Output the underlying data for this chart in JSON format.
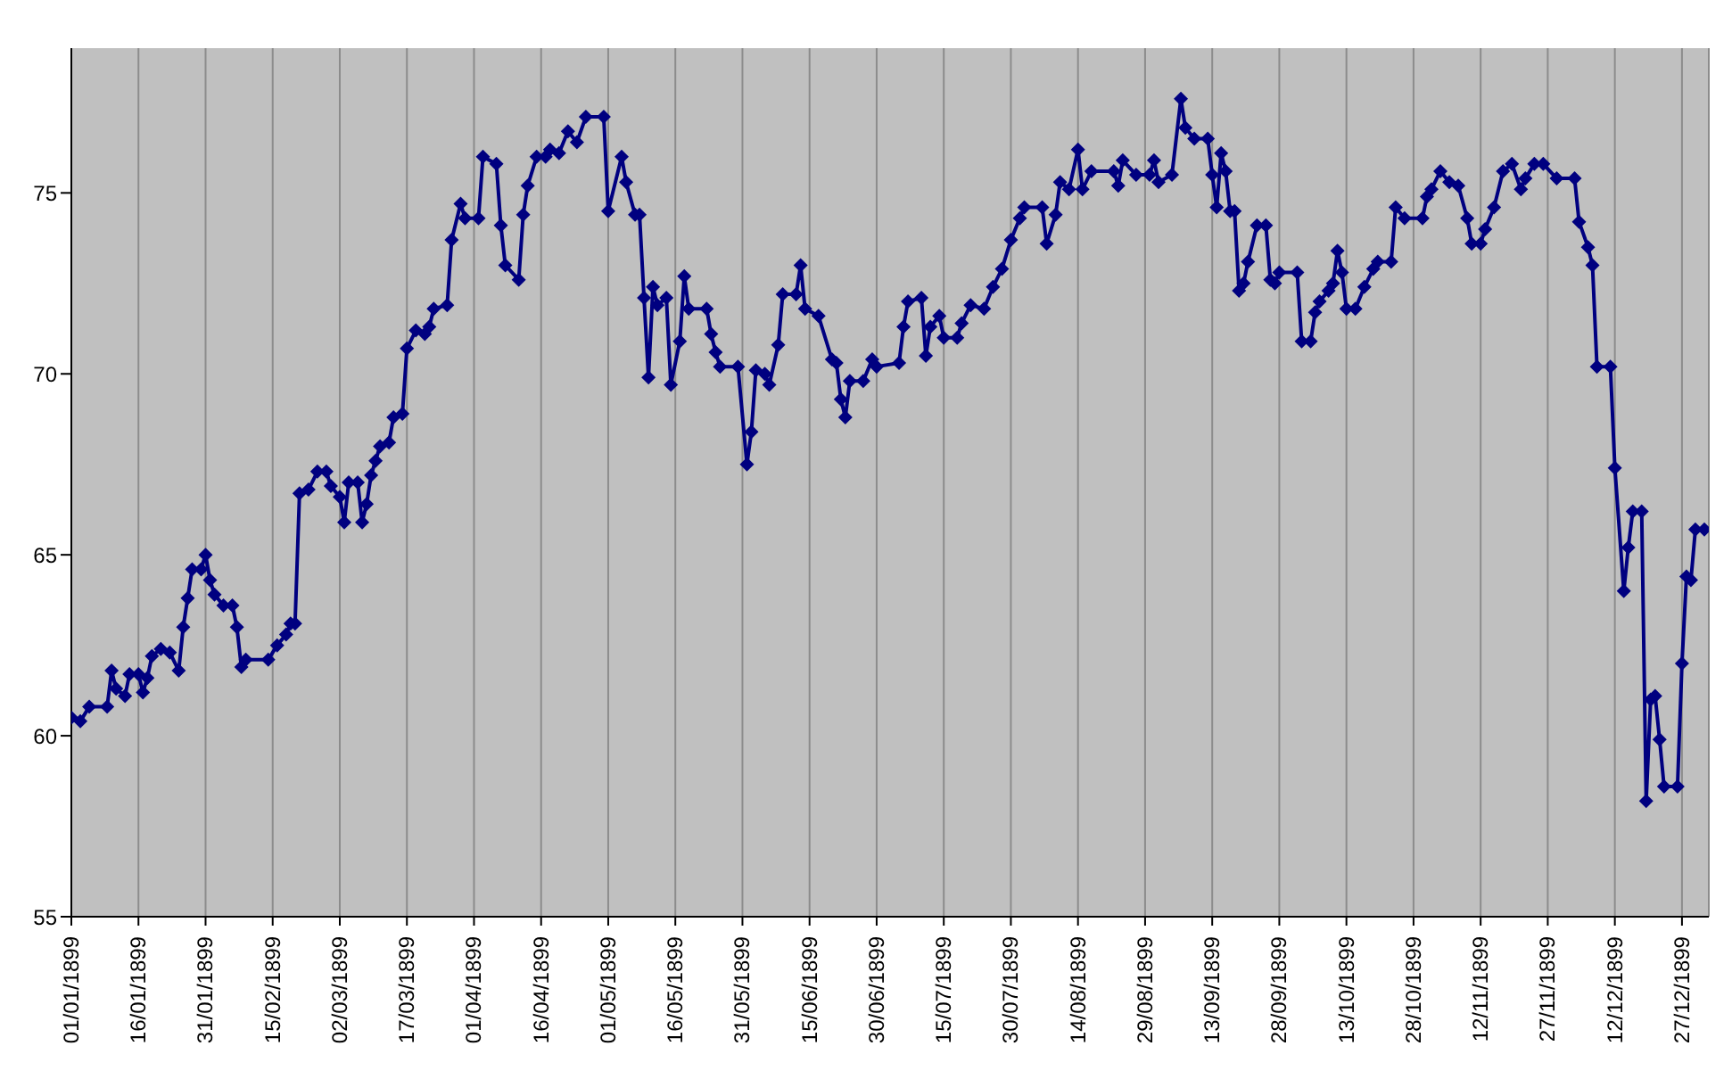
{
  "chart_data": {
    "type": "line",
    "marker": "diamond",
    "line_style": "solid",
    "grid": "x",
    "xlim": [
      "1899-01-01",
      "1900-01-02"
    ],
    "xticks": [
      {
        "value": "1899-01-01",
        "label": "01/01/1899"
      },
      {
        "value": "1899-01-16",
        "label": "16/01/1899"
      },
      {
        "value": "1899-01-31",
        "label": "31/01/1899"
      },
      {
        "value": "1899-02-15",
        "label": "15/02/1899"
      },
      {
        "value": "1899-03-02",
        "label": "02/03/1899"
      },
      {
        "value": "1899-03-17",
        "label": "17/03/1899"
      },
      {
        "value": "1899-04-01",
        "label": "01/04/1899"
      },
      {
        "value": "1899-04-16",
        "label": "16/04/1899"
      },
      {
        "value": "1899-05-01",
        "label": "01/05/1899"
      },
      {
        "value": "1899-05-16",
        "label": "16/05/1899"
      },
      {
        "value": "1899-05-31",
        "label": "31/05/1899"
      },
      {
        "value": "1899-06-15",
        "label": "15/06/1899"
      },
      {
        "value": "1899-06-30",
        "label": "30/06/1899"
      },
      {
        "value": "1899-07-15",
        "label": "15/07/1899"
      },
      {
        "value": "1899-07-30",
        "label": "30/07/1899"
      },
      {
        "value": "1899-08-14",
        "label": "14/08/1899"
      },
      {
        "value": "1899-08-29",
        "label": "29/08/1899"
      },
      {
        "value": "1899-09-13",
        "label": "13/09/1899"
      },
      {
        "value": "1899-09-28",
        "label": "28/09/1899"
      },
      {
        "value": "1899-10-13",
        "label": "13/10/1899"
      },
      {
        "value": "1899-10-28",
        "label": "28/10/1899"
      },
      {
        "value": "1899-11-12",
        "label": "12/11/1899"
      },
      {
        "value": "1899-11-27",
        "label": "27/11/1899"
      },
      {
        "value": "1899-12-12",
        "label": "12/12/1899"
      },
      {
        "value": "1899-12-27",
        "label": "27/12/1899"
      }
    ],
    "ylim": [
      55,
      79
    ],
    "yticks": [
      55,
      60,
      65,
      70,
      75
    ],
    "x": [
      "1899-01-01",
      "1899-01-03",
      "1899-01-05",
      "1899-01-09",
      "1899-01-10",
      "1899-01-11",
      "1899-01-13",
      "1899-01-14",
      "1899-01-16",
      "1899-01-17",
      "1899-01-18",
      "1899-01-19",
      "1899-01-21",
      "1899-01-23",
      "1899-01-25",
      "1899-01-26",
      "1899-01-27",
      "1899-01-28",
      "1899-01-30",
      "1899-01-31",
      "1899-02-01",
      "1899-02-02",
      "1899-02-04",
      "1899-02-06",
      "1899-02-07",
      "1899-02-08",
      "1899-02-09",
      "1899-02-14",
      "1899-02-16",
      "1899-02-18",
      "1899-02-19",
      "1899-02-20",
      "1899-02-21",
      "1899-02-23",
      "1899-02-25",
      "1899-02-27",
      "1899-02-28",
      "1899-03-02",
      "1899-03-03",
      "1899-03-04",
      "1899-03-06",
      "1899-03-07",
      "1899-03-08",
      "1899-03-09",
      "1899-03-10",
      "1899-03-11",
      "1899-03-13",
      "1899-03-14",
      "1899-03-16",
      "1899-03-17",
      "1899-03-19",
      "1899-03-21",
      "1899-03-22",
      "1899-03-23",
      "1899-03-26",
      "1899-03-27",
      "1899-03-29",
      "1899-03-30",
      "1899-04-02",
      "1899-04-03",
      "1899-04-06",
      "1899-04-07",
      "1899-04-08",
      "1899-04-11",
      "1899-04-12",
      "1899-04-13",
      "1899-04-15",
      "1899-04-17",
      "1899-04-18",
      "1899-04-20",
      "1899-04-22",
      "1899-04-24",
      "1899-04-26",
      "1899-04-30",
      "1899-05-01",
      "1899-05-04",
      "1899-05-05",
      "1899-05-07",
      "1899-05-08",
      "1899-05-09",
      "1899-05-10",
      "1899-05-11",
      "1899-05-12",
      "1899-05-14",
      "1899-05-15",
      "1899-05-17",
      "1899-05-18",
      "1899-05-19",
      "1899-05-23",
      "1899-05-24",
      "1899-05-25",
      "1899-05-26",
      "1899-05-30",
      "1899-06-01",
      "1899-06-02",
      "1899-06-03",
      "1899-06-05",
      "1899-06-06",
      "1899-06-08",
      "1899-06-09",
      "1899-06-12",
      "1899-06-13",
      "1899-06-14",
      "1899-06-17",
      "1899-06-20",
      "1899-06-21",
      "1899-06-22",
      "1899-06-23",
      "1899-06-24",
      "1899-06-27",
      "1899-06-29",
      "1899-06-30",
      "1899-07-05",
      "1899-07-06",
      "1899-07-07",
      "1899-07-10",
      "1899-07-11",
      "1899-07-12",
      "1899-07-14",
      "1899-07-15",
      "1899-07-18",
      "1899-07-19",
      "1899-07-21",
      "1899-07-24",
      "1899-07-26",
      "1899-07-28",
      "1899-07-30",
      "1899-08-01",
      "1899-08-02",
      "1899-08-06",
      "1899-08-07",
      "1899-08-09",
      "1899-08-10",
      "1899-08-12",
      "1899-08-14",
      "1899-08-15",
      "1899-08-17",
      "1899-08-22",
      "1899-08-23",
      "1899-08-24",
      "1899-08-27",
      "1899-08-30",
      "1899-08-31",
      "1899-09-01",
      "1899-09-04",
      "1899-09-06",
      "1899-09-07",
      "1899-09-09",
      "1899-09-12",
      "1899-09-13",
      "1899-09-14",
      "1899-09-15",
      "1899-09-16",
      "1899-09-17",
      "1899-09-18",
      "1899-09-19",
      "1899-09-20",
      "1899-09-21",
      "1899-09-23",
      "1899-09-25",
      "1899-09-26",
      "1899-09-27",
      "1899-09-28",
      "1899-10-02",
      "1899-10-03",
      "1899-10-05",
      "1899-10-06",
      "1899-10-07",
      "1899-10-09",
      "1899-10-10",
      "1899-10-11",
      "1899-10-12",
      "1899-10-13",
      "1899-10-15",
      "1899-10-17",
      "1899-10-19",
      "1899-10-20",
      "1899-10-23",
      "1899-10-24",
      "1899-10-26",
      "1899-10-30",
      "1899-10-31",
      "1899-11-01",
      "1899-11-03",
      "1899-11-05",
      "1899-11-07",
      "1899-11-09",
      "1899-11-10",
      "1899-11-12",
      "1899-11-13",
      "1899-11-15",
      "1899-11-17",
      "1899-11-19",
      "1899-11-21",
      "1899-11-22",
      "1899-11-24",
      "1899-11-26",
      "1899-11-29",
      "1899-12-03",
      "1899-12-04",
      "1899-12-06",
      "1899-12-07",
      "1899-12-08",
      "1899-12-11",
      "1899-12-12",
      "1899-12-14",
      "1899-12-15",
      "1899-12-16",
      "1899-12-18",
      "1899-12-19",
      "1899-12-20",
      "1899-12-21",
      "1899-12-22",
      "1899-12-23",
      "1899-12-26",
      "1899-12-27",
      "1899-12-28",
      "1899-12-29",
      "1899-12-30",
      "1900-01-01"
    ],
    "series": [
      {
        "color": "#000080",
        "values": [
          60.5,
          60.4,
          60.8,
          60.8,
          61.8,
          61.3,
          61.1,
          61.7,
          61.7,
          61.2,
          61.6,
          62.2,
          62.4,
          62.3,
          61.8,
          63.0,
          63.8,
          64.6,
          64.6,
          65.0,
          64.3,
          63.9,
          63.6,
          63.6,
          63.0,
          61.9,
          62.1,
          62.1,
          62.5,
          62.8,
          63.1,
          63.1,
          66.7,
          66.8,
          67.3,
          67.3,
          66.9,
          66.6,
          65.9,
          67.0,
          67.0,
          65.9,
          66.4,
          67.2,
          67.6,
          68.0,
          68.1,
          68.8,
          68.9,
          70.7,
          71.2,
          71.1,
          71.3,
          71.8,
          71.9,
          73.7,
          74.7,
          74.3,
          74.3,
          76.0,
          75.8,
          74.1,
          73.0,
          72.6,
          74.4,
          75.2,
          76.0,
          76.0,
          76.2,
          76.1,
          76.7,
          76.4,
          77.1,
          77.1,
          74.5,
          76.0,
          75.3,
          74.4,
          74.4,
          72.1,
          69.9,
          72.4,
          71.9,
          72.1,
          69.7,
          70.9,
          72.7,
          71.8,
          71.8,
          71.1,
          70.6,
          70.2,
          70.2,
          67.5,
          68.4,
          70.1,
          70.0,
          69.7,
          70.8,
          72.2,
          72.2,
          73.0,
          71.8,
          71.6,
          70.4,
          70.3,
          69.3,
          68.8,
          69.8,
          69.8,
          70.4,
          70.2,
          70.3,
          71.3,
          72.0,
          72.1,
          70.5,
          71.3,
          71.6,
          71.0,
          71.0,
          71.4,
          71.9,
          71.8,
          72.4,
          72.9,
          73.7,
          74.3,
          74.6,
          74.6,
          73.6,
          74.4,
          75.3,
          75.1,
          76.2,
          75.1,
          75.6,
          75.6,
          75.2,
          75.9,
          75.5,
          75.5,
          75.9,
          75.3,
          75.5,
          77.6,
          76.8,
          76.5,
          76.5,
          75.5,
          74.6,
          76.1,
          75.6,
          74.5,
          74.5,
          72.3,
          72.5,
          73.1,
          74.1,
          74.1,
          72.6,
          72.5,
          72.8,
          72.8,
          70.9,
          70.9,
          71.7,
          72.0,
          72.3,
          72.5,
          73.4,
          72.8,
          71.8,
          71.8,
          72.4,
          72.9,
          73.1,
          73.1,
          74.6,
          74.3,
          74.3,
          74.9,
          75.1,
          75.6,
          75.3,
          75.2,
          74.3,
          73.6,
          73.6,
          74.0,
          74.6,
          75.6,
          75.8,
          75.1,
          75.4,
          75.8,
          75.8,
          75.4,
          75.4,
          74.2,
          73.5,
          73.0,
          70.2,
          70.2,
          67.4,
          64.0,
          65.2,
          66.2,
          66.2,
          58.2,
          61.0,
          61.1,
          59.9,
          58.6,
          58.6,
          62.0,
          64.4,
          64.3,
          65.7,
          65.7
        ]
      }
    ]
  }
}
